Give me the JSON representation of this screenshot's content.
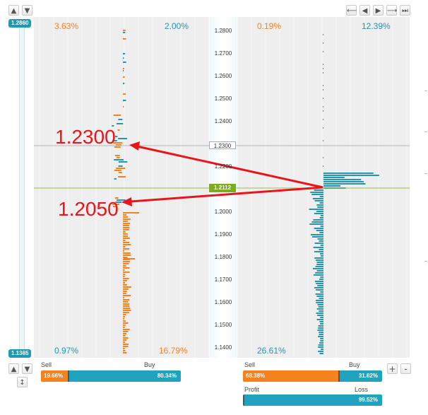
{
  "axis_top_label": "1.2860",
  "axis_bottom_label": "1.1365",
  "top_percentages": {
    "left_panel_left": "3.63%",
    "left_panel_right": "2.00%",
    "right_panel_left": "0.19%",
    "right_panel_right": "12.39%"
  },
  "bottom_percentages": {
    "left_panel_left": "0.97%",
    "left_panel_right": "16.79%",
    "right_panel_left": "26.61%"
  },
  "price_levels": [
    "1.2800",
    "1.2700",
    "1.2600",
    "1.2500",
    "1.2400",
    "1.2300",
    "1.2200",
    "1.2100",
    "1.2000",
    "1.1900",
    "1.1800",
    "1.1700",
    "1.1600",
    "1.1500",
    "1.1400"
  ],
  "marked_price": "1.2300",
  "current_price": "1.2112",
  "annotations": {
    "upper": "1.2300",
    "lower": "1.2050"
  },
  "left_sentiment": {
    "sell_label": "Sell",
    "buy_label": "Buy",
    "sell_value": "19.66%",
    "buy_value": "80.34%"
  },
  "right_sentiment": {
    "sell_label": "Sell",
    "buy_label": "Buy",
    "sell_value": "68.38%",
    "buy_value": "31.62%",
    "profit_label": "Profit",
    "loss_label": "Loss",
    "loss_value": "99.52%"
  },
  "zoom": {
    "plus": "+",
    "minus": "-"
  },
  "colors": {
    "orange": "#f5821f",
    "teal": "#2296ae",
    "current": "#7dab26",
    "annotation": "#e8151b"
  }
}
